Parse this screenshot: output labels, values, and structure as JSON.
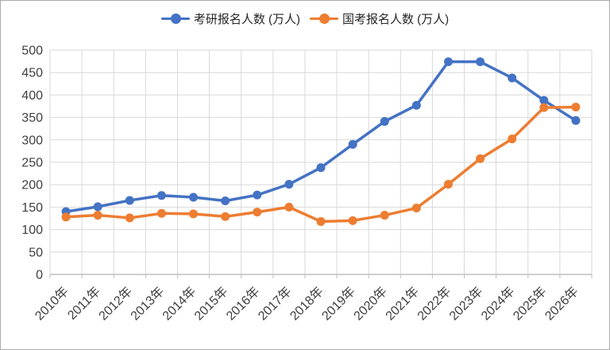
{
  "window": {
    "background": "#ffffff",
    "border_color": "#ababab"
  },
  "colors": {
    "grid": "#d9d9d9",
    "axis": "#bfbfbf",
    "tick_label": "#404040",
    "series1": "#4472c4",
    "series2": "#ed7d31"
  },
  "chart_data": {
    "type": "line",
    "title": "",
    "xlabel": "",
    "ylabel": "",
    "grid": true,
    "legend_position": "top",
    "ylim": [
      0,
      500
    ],
    "ytick_step": 50,
    "yticks": [
      0,
      50,
      100,
      150,
      200,
      250,
      300,
      350,
      400,
      450,
      500
    ],
    "categories": [
      "2010年",
      "2011年",
      "2012年",
      "2013年",
      "2014年",
      "2015年",
      "2016年",
      "2017年",
      "2018年",
      "2019年",
      "2020年",
      "2021年",
      "2022年",
      "2023年",
      "2024年",
      "2025年",
      "2026年"
    ],
    "series": [
      {
        "name": "考研报名人数 (万人)",
        "color": "#4472c4",
        "marker": "circle",
        "values": [
          140,
          151,
          165,
          176,
          172,
          164,
          177,
          201,
          238,
          290,
          341,
          377,
          474,
          474,
          438,
          388,
          343
        ]
      },
      {
        "name": "国考报名人数 (万人)",
        "color": "#ed7d31",
        "marker": "circle",
        "values": [
          128,
          132,
          126,
          136,
          135,
          129,
          139,
          150,
          118,
          120,
          132,
          148,
          201,
          258,
          302,
          372,
          373
        ]
      }
    ]
  }
}
